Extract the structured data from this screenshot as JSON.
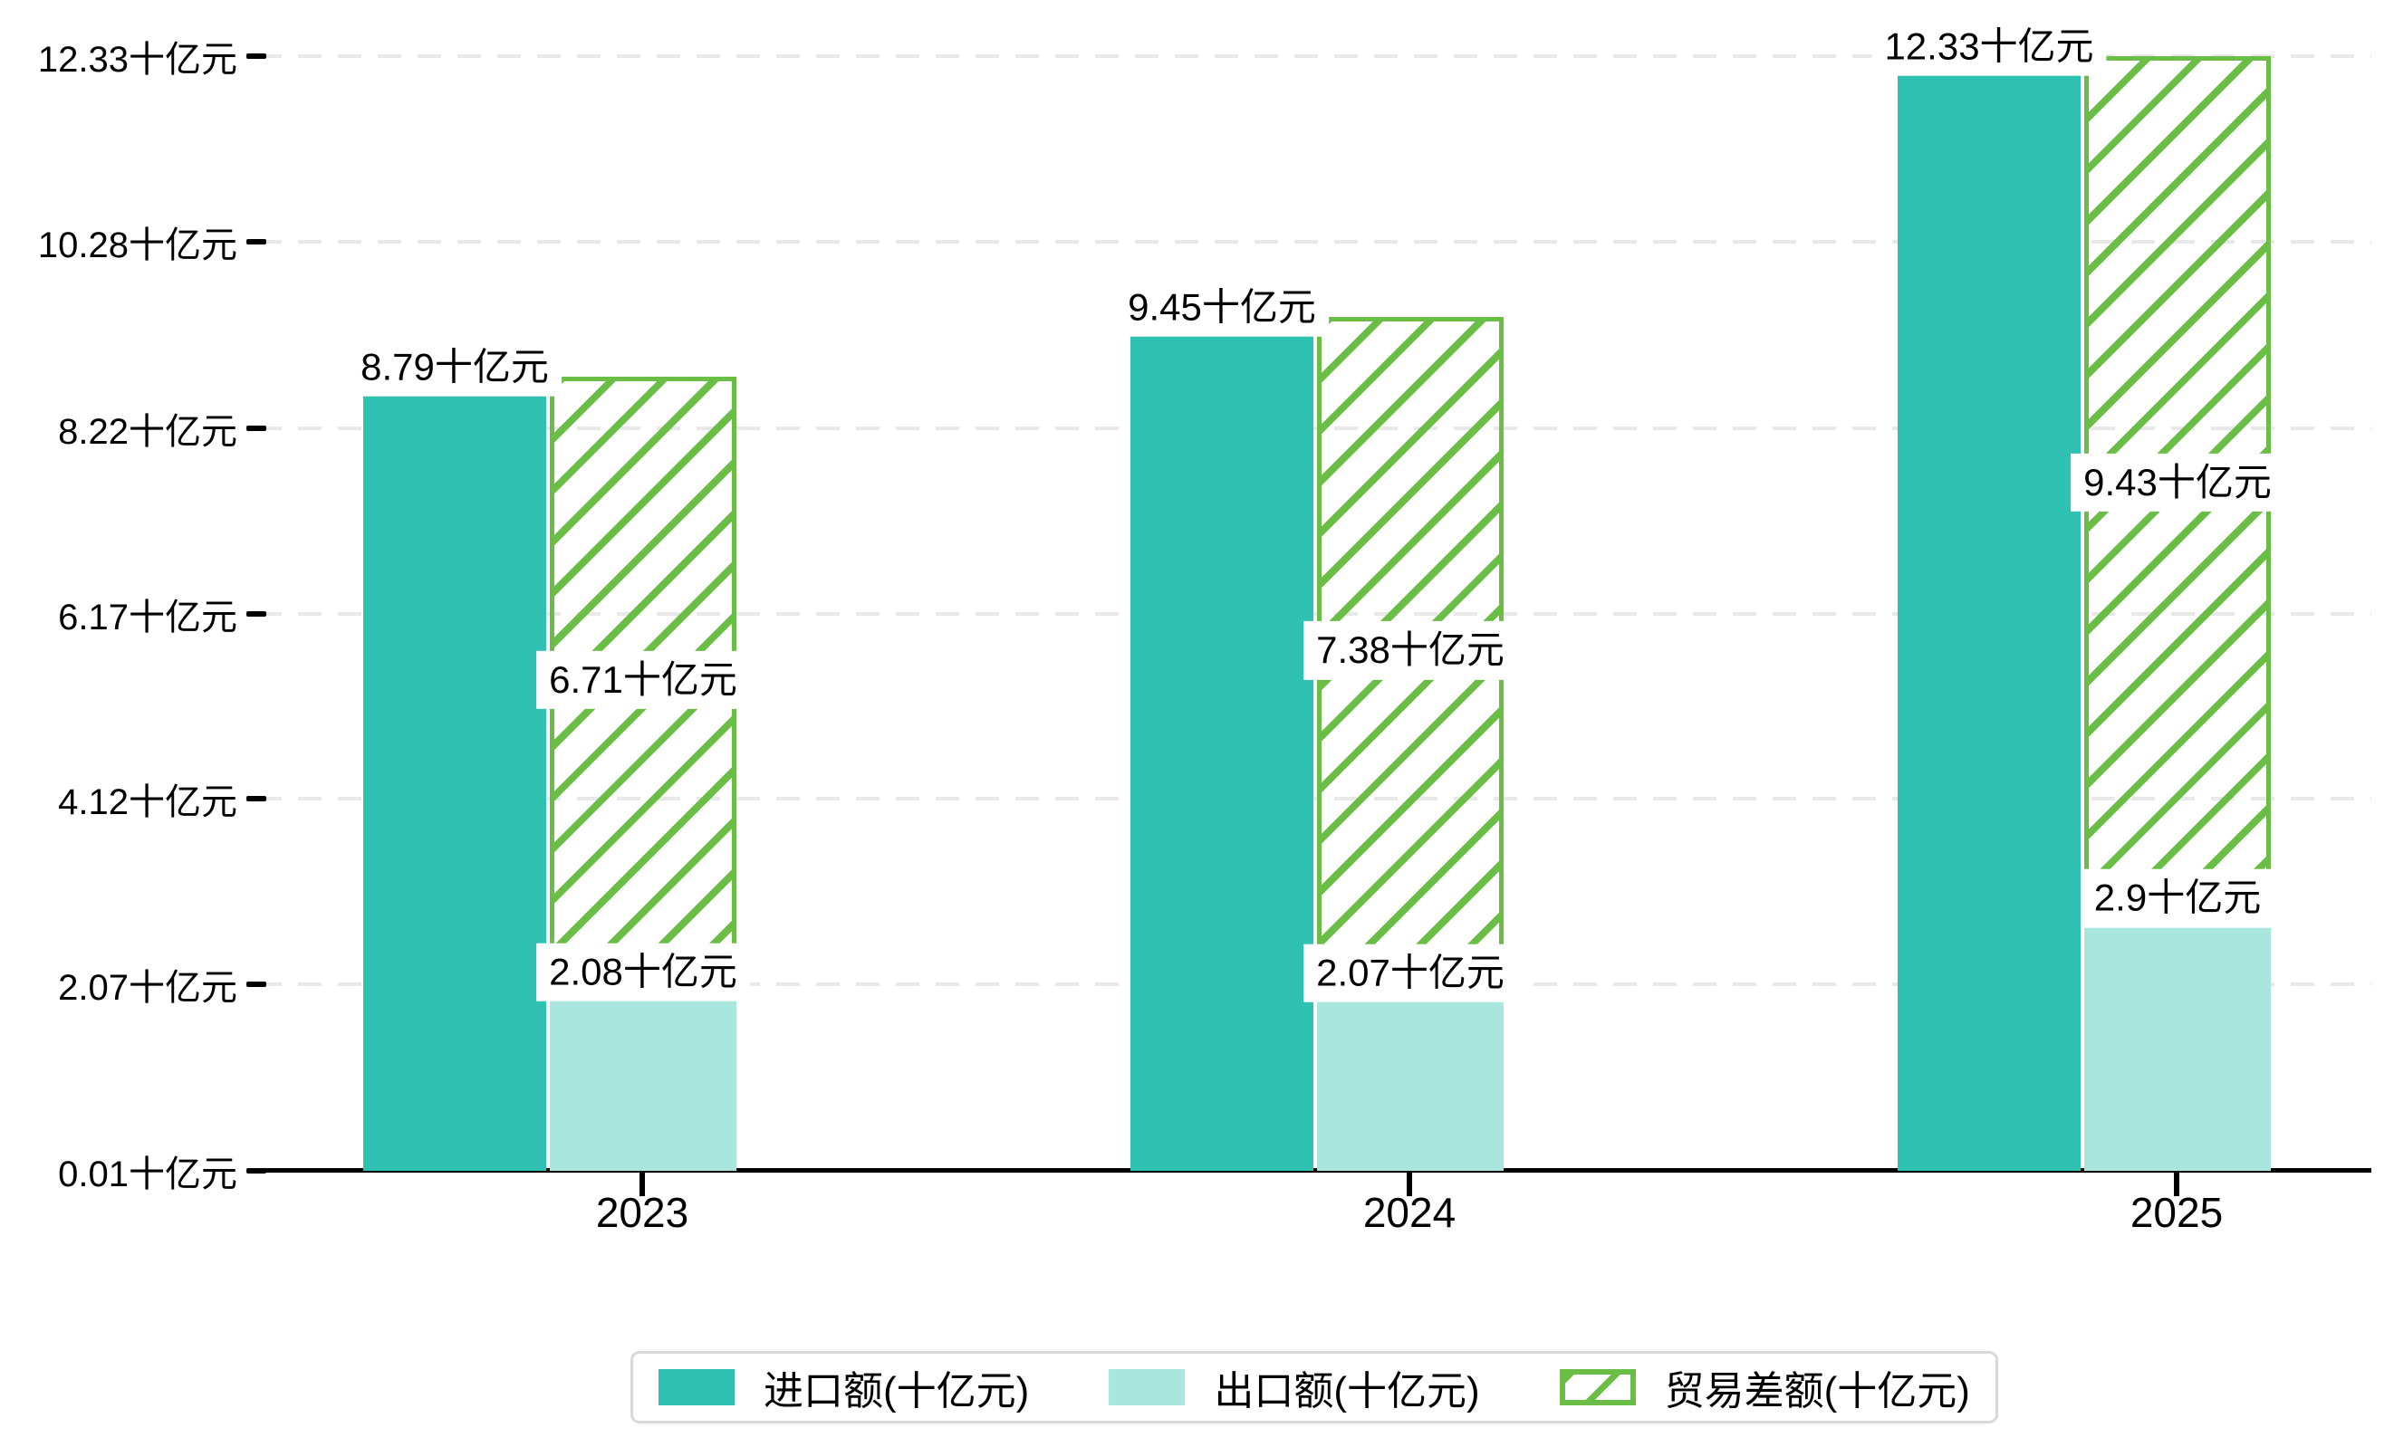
{
  "chart_data": {
    "type": "bar",
    "title": "",
    "unit": "十亿元",
    "categories": [
      "2023",
      "2024",
      "2025"
    ],
    "series": [
      {
        "name": "进口额(十亿元)",
        "style": "solid",
        "color": "#2fc1b2",
        "values": [
          8.79,
          9.45,
          12.33
        ],
        "point_labels": [
          "8.79十亿元",
          "9.45十亿元",
          "12.33十亿元"
        ]
      },
      {
        "name": "出口额(十亿元)",
        "style": "solid",
        "color": "#a9e7de",
        "values": [
          2.08,
          2.07,
          2.9
        ],
        "point_labels": [
          "2.08十亿元",
          "2.07十亿元",
          "2.9十亿元"
        ]
      },
      {
        "name": "贸易差额(十亿元)",
        "style": "hatched-outline",
        "color": "#6abd45",
        "values": [
          6.71,
          7.38,
          9.43
        ],
        "stacked_on": "出口额(十亿元)",
        "point_labels": [
          "6.71十亿元",
          "7.38十亿元",
          "9.43十亿元"
        ]
      }
    ],
    "y_axis": {
      "range": [
        0.01,
        12.33
      ],
      "grid": "dashed",
      "ticks": [
        {
          "value": 0.01,
          "label": "0.01十亿元"
        },
        {
          "value": 2.07,
          "label": "2.07十亿元"
        },
        {
          "value": 4.12,
          "label": "4.12十亿元"
        },
        {
          "value": 6.17,
          "label": "6.17十亿元"
        },
        {
          "value": 8.22,
          "label": "8.22十亿元"
        },
        {
          "value": 10.28,
          "label": "10.28十亿元"
        },
        {
          "value": 12.33,
          "label": "12.33十亿元"
        }
      ]
    },
    "legend": {
      "position": "bottom-center",
      "items": [
        "进口额(十亿元)",
        "出口额(十亿元)",
        "贸易差额(十亿元)"
      ]
    },
    "colors": {
      "import_fill": "#2fc1b2",
      "export_fill": "#a9e7de",
      "trade_balance_line": "#6abd45",
      "grid_line": "#e8e8e8",
      "axis_line": "#000000",
      "text": "#000000",
      "legend_border": "#d9d9d9",
      "background": "#ffffff"
    }
  }
}
